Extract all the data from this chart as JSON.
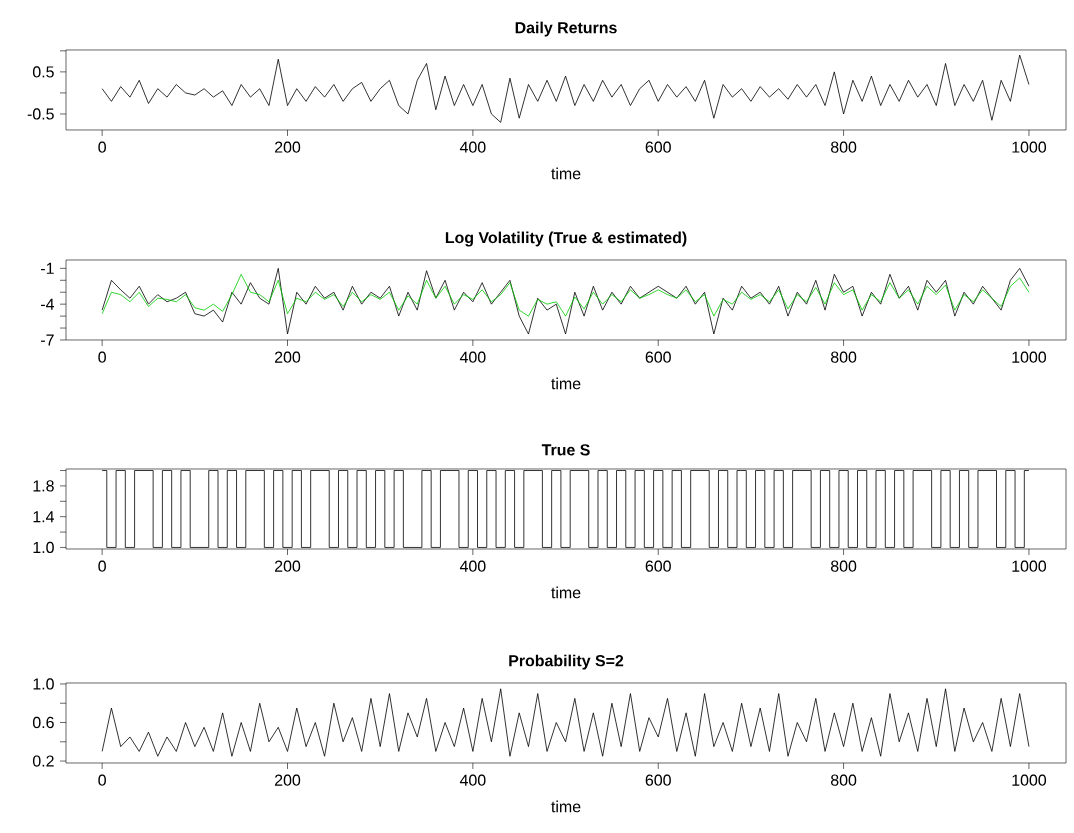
{
  "chart_data": [
    {
      "type": "line",
      "title": "Daily Returns",
      "xlabel": "time",
      "xlim": [
        -39,
        1040
      ],
      "xticks": [
        0,
        200,
        400,
        600,
        800,
        1000
      ],
      "ylim": [
        -0.88,
        1.02
      ],
      "yticks": [
        -0.5,
        {
          "value": 0,
          "label": null
        },
        0.5,
        {
          "value": 1.0,
          "label": null
        }
      ],
      "x": [
        0,
        10,
        20,
        30,
        40,
        50,
        60,
        70,
        80,
        90,
        100,
        110,
        120,
        130,
        140,
        150,
        160,
        170,
        180,
        190,
        200,
        210,
        220,
        230,
        240,
        250,
        260,
        270,
        280,
        290,
        300,
        310,
        320,
        330,
        340,
        350,
        360,
        370,
        380,
        390,
        400,
        410,
        420,
        430,
        440,
        450,
        460,
        470,
        480,
        490,
        500,
        510,
        520,
        530,
        540,
        550,
        560,
        570,
        580,
        590,
        600,
        610,
        620,
        630,
        640,
        650,
        660,
        670,
        680,
        690,
        700,
        710,
        720,
        730,
        740,
        750,
        760,
        770,
        780,
        790,
        800,
        810,
        820,
        830,
        840,
        850,
        860,
        870,
        880,
        890,
        900,
        910,
        920,
        930,
        940,
        950,
        960,
        970,
        980,
        990,
        1000
      ],
      "series": [
        {
          "color": "#000000",
          "values": [
            0.1,
            -0.2,
            0.15,
            -0.1,
            0.3,
            -0.25,
            0.1,
            -0.1,
            0.2,
            0.0,
            -0.05,
            0.1,
            -0.1,
            0.05,
            -0.3,
            0.2,
            -0.1,
            0.1,
            -0.3,
            0.8,
            -0.3,
            0.1,
            -0.2,
            0.15,
            -0.1,
            0.2,
            -0.2,
            0.1,
            0.25,
            -0.2,
            0.1,
            0.3,
            -0.3,
            -0.5,
            0.3,
            0.7,
            -0.4,
            0.4,
            -0.3,
            0.2,
            -0.3,
            0.2,
            -0.5,
            -0.7,
            0.35,
            -0.6,
            0.2,
            -0.2,
            0.3,
            -0.2,
            0.4,
            -0.3,
            0.2,
            -0.2,
            0.3,
            -0.1,
            0.2,
            -0.3,
            0.1,
            0.3,
            -0.2,
            0.2,
            -0.1,
            0.15,
            -0.2,
            0.3,
            -0.6,
            0.2,
            -0.1,
            0.1,
            -0.2,
            0.15,
            -0.1,
            0.1,
            -0.15,
            0.2,
            -0.1,
            0.2,
            -0.3,
            0.5,
            -0.5,
            0.3,
            -0.2,
            0.4,
            -0.3,
            0.2,
            -0.2,
            0.3,
            -0.1,
            0.2,
            -0.3,
            0.7,
            -0.3,
            0.2,
            -0.2,
            0.3,
            -0.65,
            0.3,
            -0.2,
            0.9,
            0.2
          ]
        }
      ]
    },
    {
      "type": "line",
      "title": "Log Volatility (True & estimated)",
      "xlabel": "time",
      "xlim": [
        -39,
        1040
      ],
      "xticks": [
        0,
        200,
        400,
        600,
        800,
        1000
      ],
      "ylim": [
        -7,
        -0.3
      ],
      "yticks": [
        -7,
        {
          "value": -6,
          "label": null
        },
        {
          "value": -5,
          "label": null
        },
        -4,
        {
          "value": -3,
          "label": null
        },
        {
          "value": -2,
          "label": null
        },
        -1
      ],
      "x": [
        0,
        10,
        20,
        30,
        40,
        50,
        60,
        70,
        80,
        90,
        100,
        110,
        120,
        130,
        140,
        150,
        160,
        170,
        180,
        190,
        200,
        210,
        220,
        230,
        240,
        250,
        260,
        270,
        280,
        290,
        300,
        310,
        320,
        330,
        340,
        350,
        360,
        370,
        380,
        390,
        400,
        410,
        420,
        430,
        440,
        450,
        460,
        470,
        480,
        490,
        500,
        510,
        520,
        530,
        540,
        550,
        560,
        570,
        580,
        590,
        600,
        610,
        620,
        630,
        640,
        650,
        660,
        670,
        680,
        690,
        700,
        710,
        720,
        730,
        740,
        750,
        760,
        770,
        780,
        790,
        800,
        810,
        820,
        830,
        840,
        850,
        860,
        870,
        880,
        890,
        900,
        910,
        920,
        930,
        940,
        950,
        960,
        970,
        980,
        990,
        1000
      ],
      "series": [
        {
          "color": "#000000",
          "values": [
            -4.5,
            -2.0,
            -2.8,
            -3.5,
            -2.5,
            -4.0,
            -3.2,
            -3.8,
            -3.5,
            -3.0,
            -4.8,
            -5.0,
            -4.5,
            -5.5,
            -3.0,
            -4.0,
            -2.2,
            -3.5,
            -4.0,
            -1.0,
            -6.5,
            -3.0,
            -4.0,
            -2.5,
            -3.5,
            -3.0,
            -4.5,
            -2.5,
            -4.0,
            -3.0,
            -3.5,
            -2.5,
            -5.0,
            -3.0,
            -4.5,
            -1.2,
            -3.5,
            -2.0,
            -4.5,
            -3.0,
            -3.8,
            -2.2,
            -4.0,
            -3.0,
            -2.0,
            -5.0,
            -6.5,
            -3.5,
            -4.5,
            -4.0,
            -6.5,
            -3.0,
            -5.0,
            -2.5,
            -4.5,
            -3.0,
            -4.0,
            -2.5,
            -3.5,
            -3.0,
            -2.5,
            -3.0,
            -3.5,
            -2.5,
            -4.0,
            -3.0,
            -6.5,
            -3.5,
            -4.5,
            -2.5,
            -3.5,
            -3.0,
            -4.0,
            -2.5,
            -5.0,
            -3.0,
            -4.0,
            -2.0,
            -4.5,
            -1.5,
            -3.0,
            -2.5,
            -5.0,
            -3.0,
            -4.0,
            -1.5,
            -3.5,
            -2.5,
            -4.5,
            -2.0,
            -3.0,
            -2.0,
            -5.0,
            -3.0,
            -4.0,
            -2.5,
            -3.5,
            -4.5,
            -2.0,
            -1.0,
            -2.5
          ]
        },
        {
          "color": "#00cc00",
          "values": [
            -4.8,
            -3.0,
            -3.2,
            -3.8,
            -3.0,
            -4.2,
            -3.5,
            -3.6,
            -3.8,
            -3.2,
            -4.3,
            -4.5,
            -4.0,
            -4.6,
            -3.2,
            -1.5,
            -3.0,
            -3.2,
            -3.8,
            -2.0,
            -4.8,
            -3.5,
            -3.8,
            -3.0,
            -3.6,
            -3.2,
            -4.2,
            -3.0,
            -3.8,
            -3.2,
            -3.6,
            -3.0,
            -4.5,
            -3.3,
            -4.0,
            -2.0,
            -3.5,
            -2.5,
            -4.0,
            -3.2,
            -3.6,
            -2.8,
            -3.8,
            -3.2,
            -2.2,
            -4.5,
            -5.0,
            -3.6,
            -4.0,
            -3.8,
            -5.0,
            -3.4,
            -4.4,
            -3.0,
            -4.0,
            -3.2,
            -3.8,
            -2.8,
            -3.5,
            -3.2,
            -2.8,
            -3.2,
            -3.5,
            -2.8,
            -3.8,
            -3.2,
            -5.0,
            -3.6,
            -4.0,
            -3.0,
            -3.6,
            -3.2,
            -3.8,
            -2.8,
            -4.4,
            -3.2,
            -3.8,
            -2.6,
            -4.0,
            -2.2,
            -3.2,
            -2.8,
            -4.5,
            -3.2,
            -3.8,
            -2.2,
            -3.5,
            -2.8,
            -4.0,
            -2.5,
            -3.2,
            -2.4,
            -4.5,
            -3.2,
            -3.8,
            -2.8,
            -3.5,
            -4.2,
            -2.5,
            -1.8,
            -3.0
          ]
        }
      ]
    },
    {
      "type": "step",
      "title": "True S",
      "xlabel": "time",
      "xlim": [
        -39,
        1040
      ],
      "xticks": [
        0,
        200,
        400,
        600,
        800,
        1000
      ],
      "ylim": [
        0.98,
        2.02
      ],
      "yticks": [
        {
          "value": 1.0,
          "label": "1.0"
        },
        {
          "value": 1.2,
          "label": null
        },
        1.4,
        {
          "value": 1.6,
          "label": null
        },
        1.8,
        {
          "value": 2.0,
          "label": null
        }
      ],
      "x": [
        0,
        10,
        20,
        30,
        40,
        50,
        60,
        70,
        80,
        90,
        100,
        110,
        120,
        130,
        140,
        150,
        160,
        170,
        180,
        190,
        200,
        210,
        220,
        230,
        240,
        250,
        260,
        270,
        280,
        290,
        300,
        310,
        320,
        330,
        340,
        350,
        360,
        370,
        380,
        390,
        400,
        410,
        420,
        430,
        440,
        450,
        460,
        470,
        480,
        490,
        500,
        510,
        520,
        530,
        540,
        550,
        560,
        570,
        580,
        590,
        600,
        610,
        620,
        630,
        640,
        650,
        660,
        670,
        680,
        690,
        700,
        710,
        720,
        730,
        740,
        750,
        760,
        770,
        780,
        790,
        800,
        810,
        820,
        830,
        840,
        850,
        860,
        870,
        880,
        890,
        900,
        910,
        920,
        930,
        940,
        950,
        960,
        970,
        980,
        990,
        1000
      ],
      "series": [
        {
          "color": "#000000",
          "values": [
            2,
            1,
            2,
            1,
            2,
            2,
            1,
            2,
            1,
            2,
            1,
            1,
            2,
            1,
            2,
            1,
            2,
            2,
            1,
            2,
            1,
            2,
            1,
            2,
            2,
            1,
            2,
            1,
            2,
            1,
            2,
            1,
            2,
            1,
            1,
            2,
            1,
            2,
            2,
            1,
            2,
            1,
            2,
            1,
            2,
            1,
            2,
            2,
            1,
            2,
            1,
            2,
            2,
            1,
            2,
            1,
            2,
            1,
            2,
            1,
            2,
            1,
            2,
            1,
            2,
            2,
            1,
            2,
            1,
            2,
            1,
            2,
            1,
            2,
            1,
            2,
            2,
            1,
            2,
            1,
            2,
            1,
            2,
            1,
            2,
            1,
            2,
            1,
            2,
            2,
            1,
            2,
            1,
            2,
            1,
            2,
            2,
            1,
            2,
            1,
            2
          ]
        }
      ]
    },
    {
      "type": "line",
      "title": "Probability S=2",
      "xlabel": "time",
      "xlim": [
        -39,
        1040
      ],
      "xticks": [
        0,
        200,
        400,
        600,
        800,
        1000
      ],
      "ylim": [
        0.18,
        1.01
      ],
      "yticks": [
        0.2,
        {
          "value": 0.4,
          "label": null
        },
        0.6,
        {
          "value": 0.8,
          "label": null
        },
        {
          "value": 1.0,
          "label": "1.0"
        }
      ],
      "x": [
        0,
        10,
        20,
        30,
        40,
        50,
        60,
        70,
        80,
        90,
        100,
        110,
        120,
        130,
        140,
        150,
        160,
        170,
        180,
        190,
        200,
        210,
        220,
        230,
        240,
        250,
        260,
        270,
        280,
        290,
        300,
        310,
        320,
        330,
        340,
        350,
        360,
        370,
        380,
        390,
        400,
        410,
        420,
        430,
        440,
        450,
        460,
        470,
        480,
        490,
        500,
        510,
        520,
        530,
        540,
        550,
        560,
        570,
        580,
        590,
        600,
        610,
        620,
        630,
        640,
        650,
        660,
        670,
        680,
        690,
        700,
        710,
        720,
        730,
        740,
        750,
        760,
        770,
        780,
        790,
        800,
        810,
        820,
        830,
        840,
        850,
        860,
        870,
        880,
        890,
        900,
        910,
        920,
        930,
        940,
        950,
        960,
        970,
        980,
        990,
        1000
      ],
      "series": [
        {
          "color": "#000000",
          "values": [
            0.3,
            0.75,
            0.35,
            0.45,
            0.3,
            0.5,
            0.25,
            0.45,
            0.3,
            0.6,
            0.35,
            0.55,
            0.3,
            0.7,
            0.25,
            0.6,
            0.3,
            0.8,
            0.4,
            0.55,
            0.3,
            0.75,
            0.35,
            0.6,
            0.25,
            0.8,
            0.4,
            0.65,
            0.3,
            0.85,
            0.35,
            0.9,
            0.3,
            0.7,
            0.45,
            0.85,
            0.3,
            0.6,
            0.35,
            0.75,
            0.3,
            0.85,
            0.4,
            0.95,
            0.25,
            0.7,
            0.35,
            0.9,
            0.3,
            0.6,
            0.4,
            0.85,
            0.3,
            0.7,
            0.25,
            0.8,
            0.35,
            0.9,
            0.3,
            0.65,
            0.45,
            0.85,
            0.3,
            0.7,
            0.25,
            0.9,
            0.35,
            0.6,
            0.3,
            0.8,
            0.35,
            0.75,
            0.3,
            0.9,
            0.25,
            0.6,
            0.4,
            0.85,
            0.3,
            0.7,
            0.35,
            0.8,
            0.3,
            0.65,
            0.25,
            0.9,
            0.4,
            0.7,
            0.3,
            0.85,
            0.35,
            0.95,
            0.3,
            0.75,
            0.4,
            0.6,
            0.3,
            0.85,
            0.35,
            0.9,
            0.35
          ]
        }
      ]
    }
  ]
}
